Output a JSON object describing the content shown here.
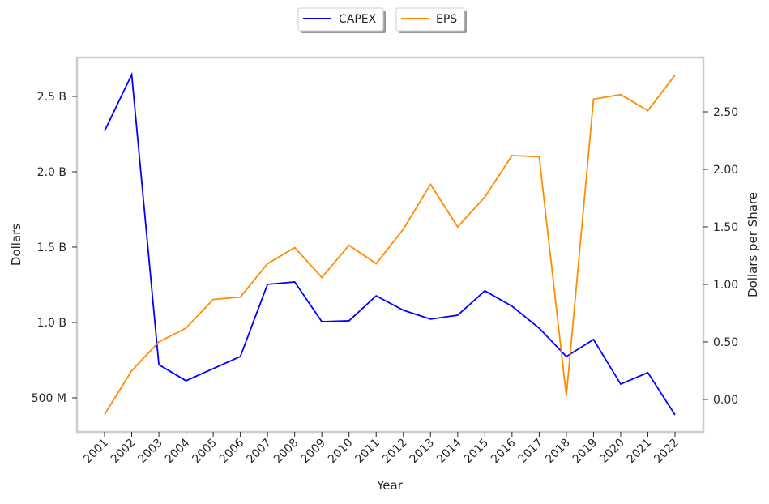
{
  "chart_data": {
    "type": "line",
    "xlabel": "Year",
    "ylabel_left": "Dollars",
    "ylabel_right": "Dollars per Share",
    "x": [
      "2001",
      "2002",
      "2003",
      "2004",
      "2005",
      "2006",
      "2007",
      "2008",
      "2009",
      "2010",
      "2011",
      "2012",
      "2013",
      "2014",
      "2015",
      "2016",
      "2017",
      "2018",
      "2019",
      "2020",
      "2021",
      "2022"
    ],
    "left_ylim": [
      0.274,
      2.758
    ],
    "right_ylim": [
      -0.282,
      2.972
    ],
    "left_ticks": [
      {
        "v": 0.5,
        "label": "500 M"
      },
      {
        "v": 1.0,
        "label": "1.0 B"
      },
      {
        "v": 1.5,
        "label": "1.5 B"
      },
      {
        "v": 2.0,
        "label": "2.0 B"
      },
      {
        "v": 2.5,
        "label": "2.5 B"
      }
    ],
    "right_ticks": [
      {
        "v": 0,
        "label": "0.00"
      },
      {
        "v": 0.5,
        "label": "0.50"
      },
      {
        "v": 1.0,
        "label": "1.00"
      },
      {
        "v": 1.5,
        "label": "1.50"
      },
      {
        "v": 2.0,
        "label": "2.00"
      },
      {
        "v": 2.5,
        "label": "2.50"
      }
    ],
    "legend_position": "top-center",
    "grid": false,
    "series": [
      {
        "name": "CAPEX",
        "axis": "left",
        "unit": "billions of dollars",
        "color": "#0000ff",
        "values": [
          2.27,
          2.645,
          0.72,
          0.613,
          0.694,
          0.774,
          1.253,
          1.269,
          1.005,
          1.011,
          1.177,
          1.081,
          1.022,
          1.048,
          1.21,
          1.108,
          0.962,
          0.774,
          0.887,
          0.591,
          0.667,
          0.387
        ]
      },
      {
        "name": "EPS",
        "axis": "right",
        "unit": "dollars per share",
        "color": "#ff8c00",
        "values": [
          -0.13,
          0.25,
          0.5,
          0.62,
          0.87,
          0.89,
          1.18,
          1.32,
          1.06,
          1.34,
          1.18,
          1.48,
          1.87,
          1.5,
          1.76,
          2.12,
          2.11,
          0.03,
          2.61,
          2.65,
          2.51,
          2.82
        ]
      }
    ]
  }
}
